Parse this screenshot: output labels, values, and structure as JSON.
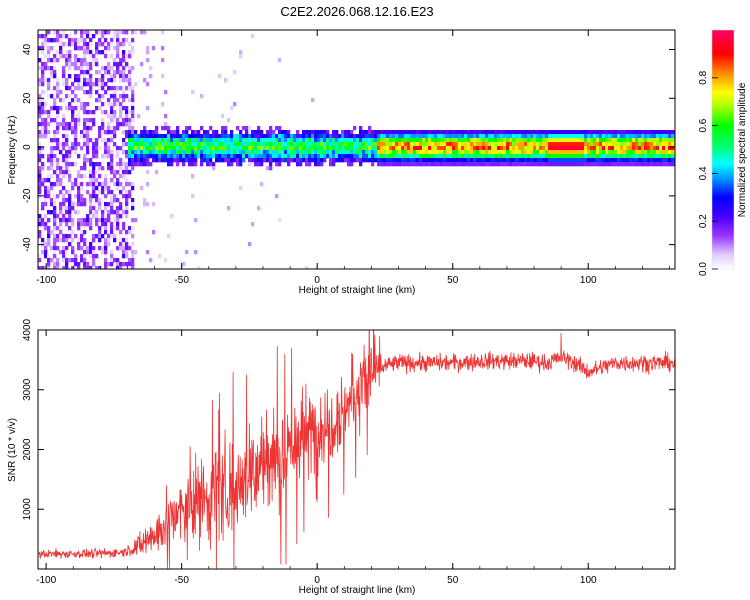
{
  "figure": {
    "title": "C2E2.2026.068.12.16.E23"
  },
  "chart_data": [
    {
      "type": "heatmap",
      "title": "",
      "xlabel": "Height of straight line (km)",
      "ylabel": "Frequency (Hz)",
      "xlim": [
        -103,
        132
      ],
      "ylim": [
        -50,
        48
      ],
      "xticks": [
        -100,
        -50,
        0,
        50,
        100
      ],
      "yticks": [
        -40,
        -20,
        0,
        20,
        40
      ],
      "grid": false,
      "colorbar": {
        "label": "Normalized spectral amplitude",
        "range": [
          0,
          1
        ],
        "ticks": [
          0.0,
          0.2,
          0.4,
          0.6,
          0.8
        ],
        "colormap": [
          "#ffffff",
          "#cc99ff",
          "#7a1fff",
          "#0000ff",
          "#00ffff",
          "#00ff00",
          "#ffff00",
          "#ff8800",
          "#ff0000",
          "#ff0066"
        ]
      },
      "regions": [
        {
          "x_range": [
            -103,
            -68
          ],
          "freq_range": [
            -50,
            48
          ],
          "description_level": 0.15
        },
        {
          "x_range": [
            -68,
            22
          ],
          "freq_center": 0.5,
          "amplitude_peak": 0.6
        },
        {
          "x_range": [
            22,
            132
          ],
          "freq_center": 0.5,
          "amplitude_peak": 0.95
        }
      ]
    },
    {
      "type": "line",
      "title": "",
      "xlabel": "Height of straight line (km)",
      "ylabel": "SNR (10 * v/v)",
      "xlim": [
        -103,
        132
      ],
      "ylim": [
        0,
        4000
      ],
      "xticks": [
        -100,
        -50,
        0,
        50,
        100
      ],
      "yticks": [
        1000,
        2000,
        3000,
        4000
      ],
      "grid": false,
      "color": "#ee3333",
      "baseline_profile": {
        "x": [
          -103,
          -80,
          -72,
          -65,
          -60,
          -55,
          -50,
          -45,
          -40,
          -35,
          -30,
          -25,
          -20,
          -15,
          -10,
          -5,
          0,
          5,
          10,
          15,
          20,
          25,
          30,
          40,
          50,
          60,
          70,
          80,
          85,
          90,
          95,
          100,
          110,
          120,
          132
        ],
        "y": [
          250,
          260,
          280,
          400,
          600,
          800,
          950,
          1100,
          1250,
          1350,
          1450,
          1600,
          1750,
          1900,
          2050,
          2200,
          2350,
          2500,
          2700,
          2950,
          3250,
          3400,
          3450,
          3450,
          3450,
          3480,
          3480,
          3480,
          3450,
          3550,
          3450,
          3300,
          3450,
          3450,
          3450
        ]
      },
      "noise_amplitude": {
        "x": [
          -103,
          -70,
          -60,
          -40,
          -20,
          0,
          20,
          25,
          132
        ],
        "y": [
          90,
          100,
          450,
          1000,
          1100,
          1000,
          700,
          180,
          180
        ]
      },
      "peaks": [
        {
          "x": -36,
          "y": 2950
        },
        {
          "x": -31,
          "y": 3300
        },
        {
          "x": -26,
          "y": 3250
        },
        {
          "x": -12,
          "y": 3600
        },
        {
          "x": 13,
          "y": 3600
        },
        {
          "x": 20,
          "y": 3700
        },
        {
          "x": 23,
          "y": 3900
        },
        {
          "x": 90,
          "y": 3950
        }
      ]
    }
  ]
}
